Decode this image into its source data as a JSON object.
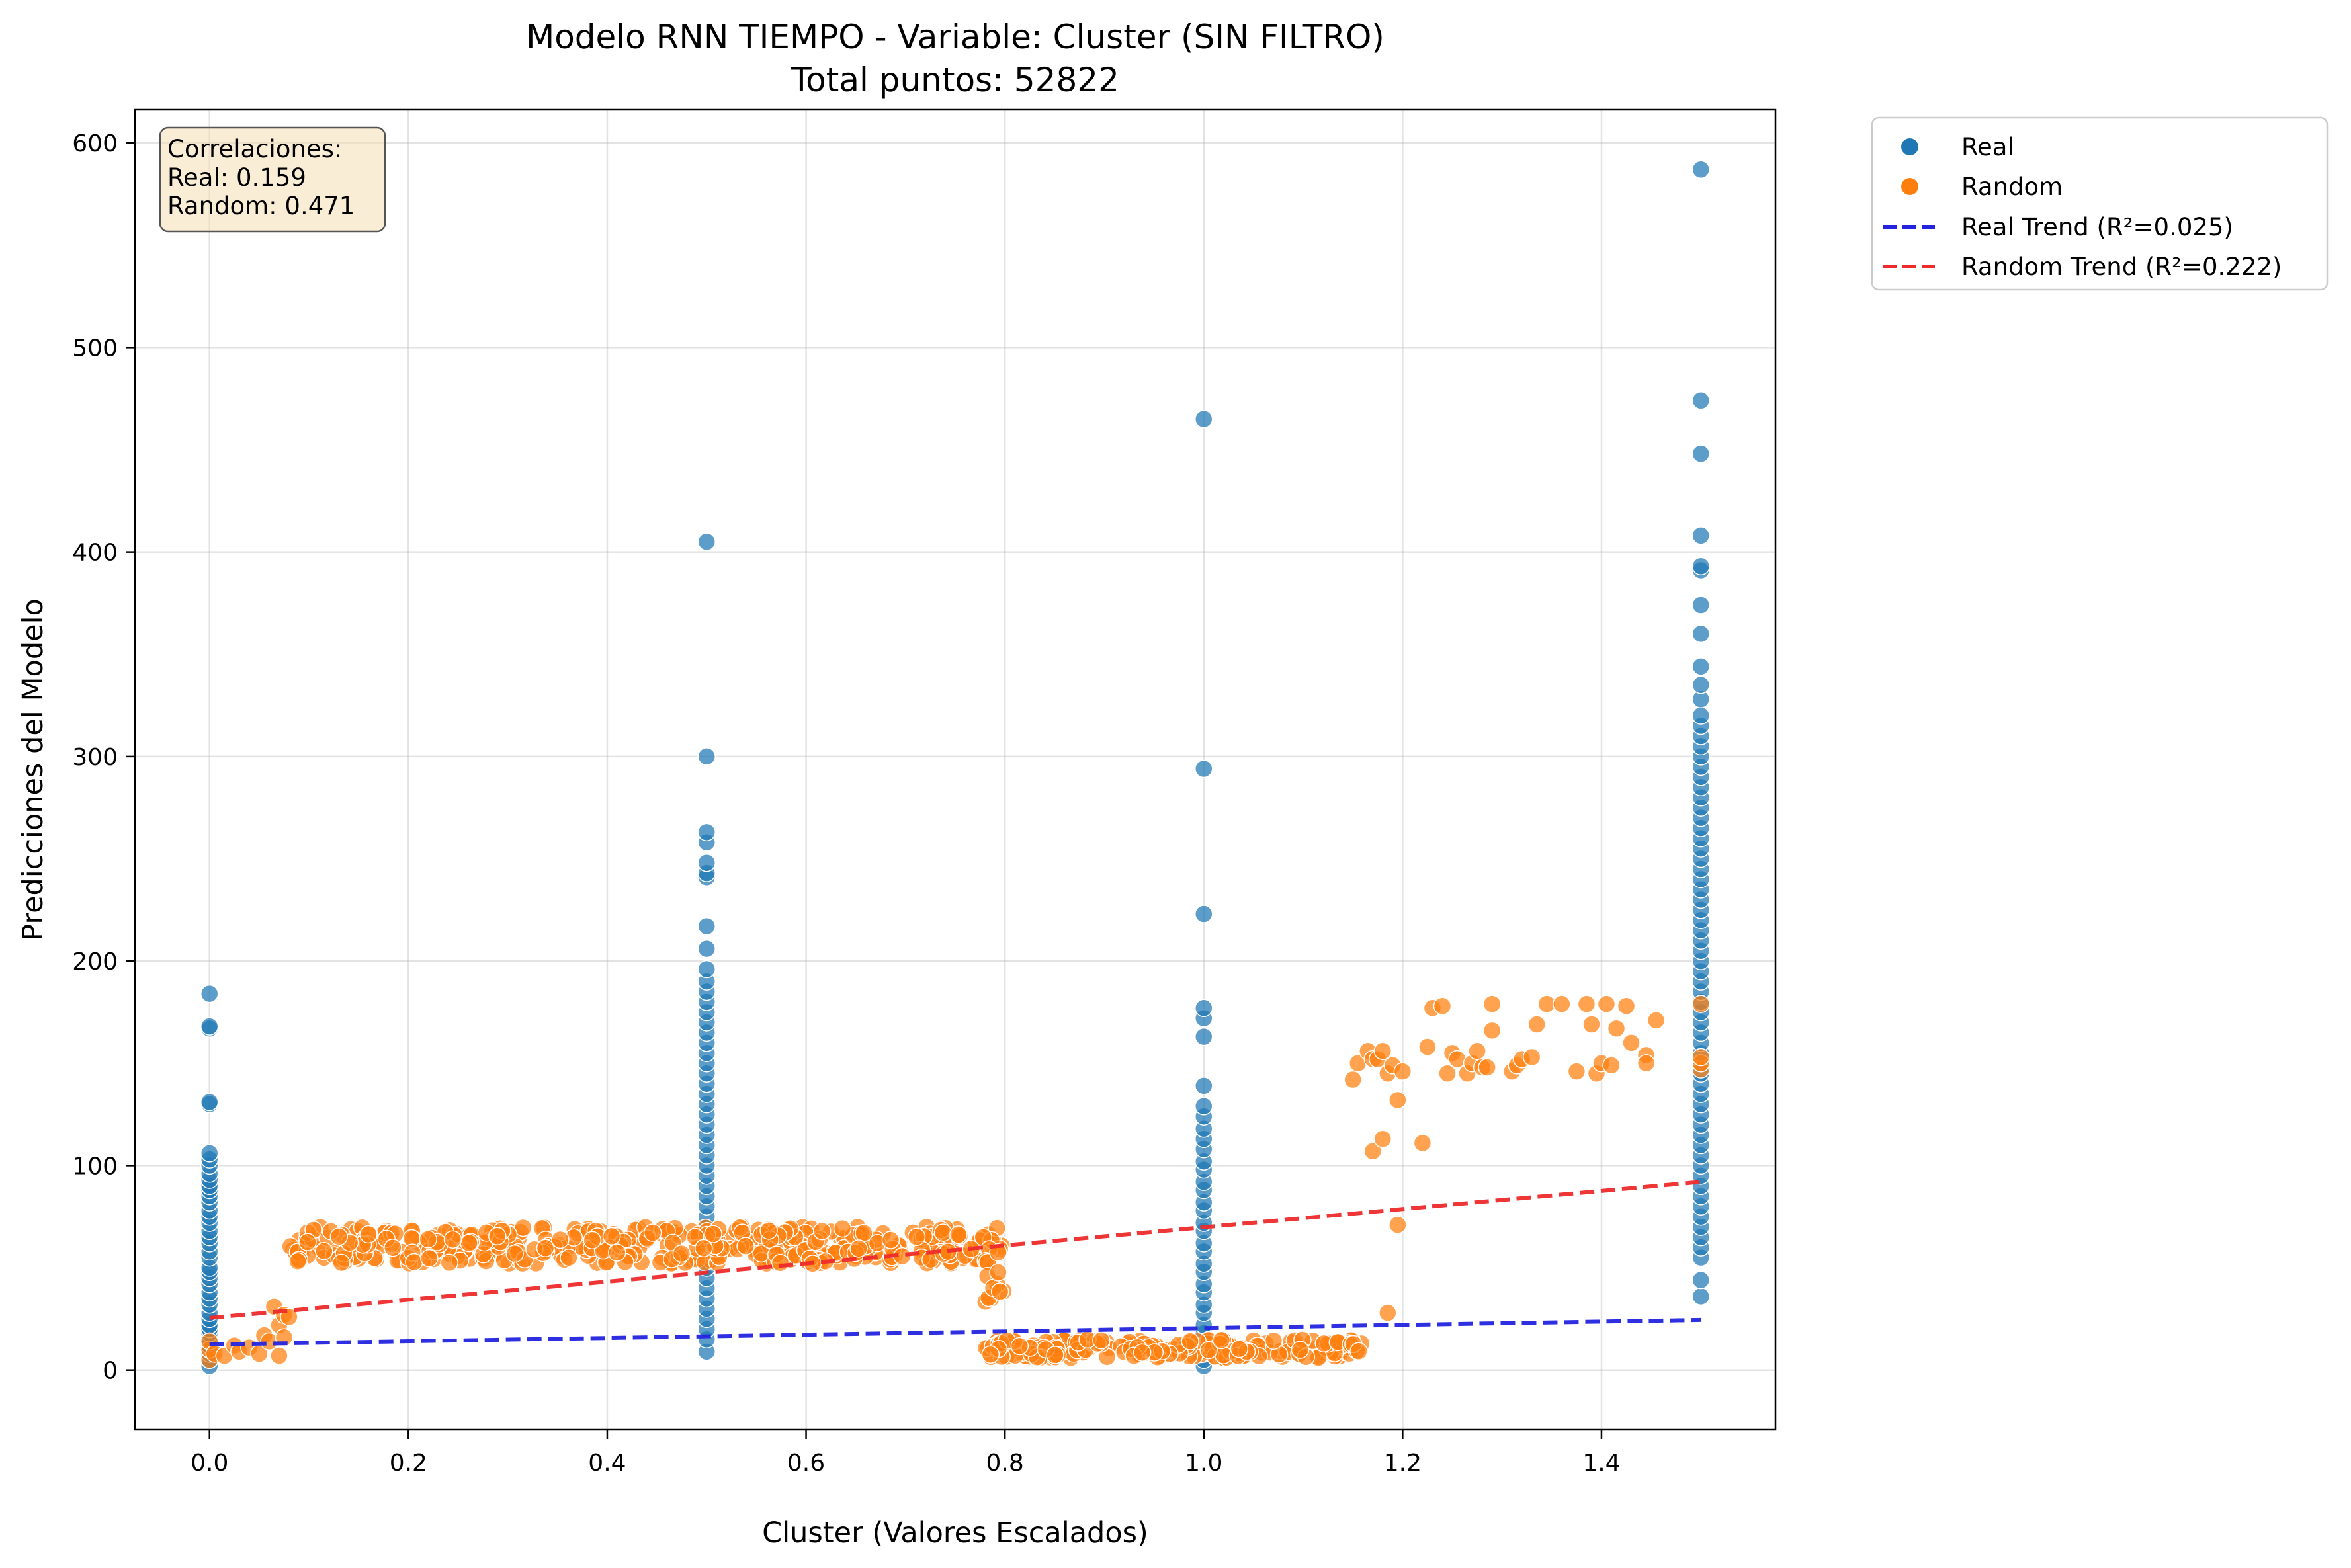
{
  "chart_data": {
    "type": "scatter",
    "title": "Modelo RNN TIEMPO - Variable: Cluster (SIN FILTRO)",
    "subtitle": "Total puntos: 52822",
    "xlabel": "Cluster (Valores Escalados)",
    "ylabel": "Predicciones del Modelo",
    "xlim": [
      -0.075,
      1.575
    ],
    "ylim": [
      -29.2,
      616.2
    ],
    "xticks": [
      0.0,
      0.2,
      0.4,
      0.6,
      0.8,
      1.0,
      1.2,
      1.4
    ],
    "xtick_labels": [
      "0.0",
      "0.2",
      "0.4",
      "0.6",
      "0.8",
      "1.0",
      "1.2",
      "1.4"
    ],
    "yticks": [
      0,
      100,
      200,
      300,
      400,
      500,
      600
    ],
    "ytick_labels": [
      "0",
      "100",
      "200",
      "300",
      "400",
      "500",
      "600"
    ],
    "grid": true,
    "legend_position": "outside-top-right",
    "series": [
      {
        "name": "Real",
        "color": "#1f77b4",
        "groups": [
          {
            "x": 0.0,
            "y": [
              2,
              5,
              8,
              10,
              12,
              15,
              18,
              20,
              22,
              25,
              28,
              32,
              35,
              38,
              42,
              45,
              48,
              50,
              55,
              58,
              62,
              65,
              68,
              72,
              75,
              78,
              82,
              85,
              88,
              90,
              93,
              96,
              100,
              103,
              106,
              130,
              131,
              167,
              168,
              184
            ]
          },
          {
            "x": 0.5,
            "y": [
              9,
              15,
              20,
              25,
              30,
              35,
              40,
              45,
              50,
              55,
              60,
              65,
              70,
              75,
              80,
              85,
              90,
              95,
              100,
              105,
              110,
              115,
              120,
              125,
              130,
              135,
              140,
              145,
              150,
              155,
              160,
              165,
              170,
              175,
              180,
              185,
              190,
              196,
              206,
              217,
              241,
              243,
              248,
              258,
              263,
              300,
              405
            ]
          },
          {
            "x": 1.0,
            "y": [
              2,
              5,
              8,
              12,
              18,
              22,
              28,
              32,
              38,
              42,
              48,
              52,
              58,
              62,
              68,
              72,
              78,
              82,
              88,
              92,
              98,
              102,
              108,
              113,
              118,
              124,
              129,
              139,
              163,
              172,
              177,
              223,
              294,
              465
            ]
          },
          {
            "x": 1.5,
            "y": [
              36,
              44,
              55,
              60,
              65,
              70,
              75,
              80,
              85,
              90,
              95,
              100,
              105,
              110,
              115,
              120,
              125,
              130,
              135,
              140,
              145,
              150,
              155,
              160,
              165,
              170,
              175,
              180,
              185,
              190,
              195,
              200,
              205,
              210,
              215,
              220,
              225,
              230,
              235,
              240,
              245,
              250,
              255,
              260,
              265,
              270,
              275,
              280,
              285,
              290,
              295,
              300,
              305,
              310,
              315,
              320,
              328,
              335,
              344,
              360,
              374,
              391,
              393,
              408,
              448,
              474,
              587
            ]
          }
        ]
      },
      {
        "name": "Random",
        "color": "#ff7f0e",
        "points": [
          [
            0.0,
            5
          ],
          [
            0.0,
            10
          ],
          [
            0.0,
            14
          ],
          [
            0.005,
            8
          ],
          [
            0.015,
            7
          ],
          [
            0.025,
            12
          ],
          [
            0.03,
            9
          ],
          [
            0.04,
            11
          ],
          [
            0.05,
            8
          ],
          [
            0.055,
            17
          ],
          [
            0.06,
            14
          ],
          [
            0.065,
            31
          ],
          [
            0.07,
            7
          ],
          [
            0.07,
            22
          ],
          [
            0.075,
            16
          ],
          [
            0.075,
            27
          ],
          [
            0.08,
            26
          ],
          [
            1.15,
            142
          ],
          [
            1.155,
            150
          ],
          [
            1.165,
            156
          ],
          [
            1.17,
            107
          ],
          [
            1.17,
            152
          ],
          [
            1.175,
            152
          ],
          [
            1.18,
            113
          ],
          [
            1.18,
            156
          ],
          [
            1.185,
            28
          ],
          [
            1.185,
            145
          ],
          [
            1.19,
            149
          ],
          [
            1.195,
            71
          ],
          [
            1.195,
            132
          ],
          [
            1.2,
            146
          ],
          [
            1.22,
            111
          ],
          [
            1.225,
            158
          ],
          [
            1.23,
            177
          ],
          [
            1.24,
            178
          ],
          [
            1.245,
            145
          ],
          [
            1.25,
            155
          ],
          [
            1.255,
            152
          ],
          [
            1.265,
            145
          ],
          [
            1.27,
            150
          ],
          [
            1.275,
            156
          ],
          [
            1.28,
            148
          ],
          [
            1.285,
            148
          ],
          [
            1.29,
            166
          ],
          [
            1.29,
            179
          ],
          [
            1.31,
            146
          ],
          [
            1.315,
            149
          ],
          [
            1.32,
            152
          ],
          [
            1.33,
            153
          ],
          [
            1.335,
            169
          ],
          [
            1.345,
            179
          ],
          [
            1.36,
            179
          ],
          [
            1.375,
            146
          ],
          [
            1.385,
            179
          ],
          [
            1.39,
            169
          ],
          [
            1.395,
            145
          ],
          [
            1.4,
            150
          ],
          [
            1.405,
            179
          ],
          [
            1.41,
            149
          ],
          [
            1.415,
            167
          ],
          [
            1.425,
            178
          ],
          [
            1.43,
            160
          ],
          [
            1.445,
            154
          ],
          [
            1.445,
            150
          ],
          [
            1.455,
            171
          ],
          [
            1.5,
            147
          ],
          [
            1.5,
            150
          ],
          [
            1.5,
            153
          ],
          [
            1.5,
            179
          ]
        ],
        "bands": [
          {
            "x_range": [
              0.08,
              0.8
            ],
            "y_range": [
              52,
              70
            ],
            "count": 430
          },
          {
            "x_range": [
              0.78,
              0.8
            ],
            "y_range": [
              30,
              60
            ],
            "count": 12
          },
          {
            "x_range": [
              0.78,
              1.16
            ],
            "y_range": [
              6,
              15
            ],
            "count": 230
          }
        ]
      }
    ],
    "trend_lines": [
      {
        "name": "Real Trend (R²=0.025)",
        "color": "#2424e0",
        "x": [
          0.0,
          1.5
        ],
        "y": [
          12.5,
          24.5
        ]
      },
      {
        "name": "Random Trend (R²=0.222)",
        "color": "#ee2b2b",
        "x": [
          0.0,
          1.5
        ],
        "y": [
          25.5,
          92
        ]
      }
    ],
    "annotation": {
      "lines": [
        "Correlaciones:",
        "Real: 0.159",
        "Random: 0.471"
      ]
    }
  }
}
